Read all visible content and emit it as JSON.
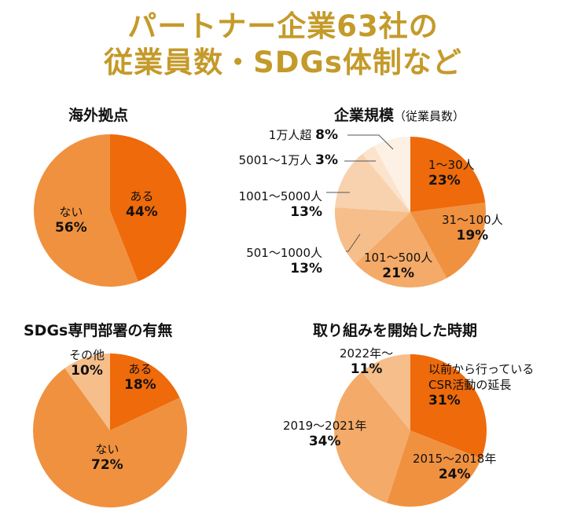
{
  "title": {
    "line1": "パートナー企業63社の",
    "line2": "従業員数・SDGs体制など"
  },
  "colors": [
    "#EE6A0A",
    "#F0913F",
    "#F4AA68",
    "#F6BE8A",
    "#F8D2AE",
    "#FBE3CC",
    "#FDF0E4"
  ],
  "chart_data": [
    {
      "type": "pie",
      "title": "海外拠点",
      "categories": [
        "ある",
        "ない"
      ],
      "values": [
        44,
        56
      ],
      "labels": [
        "44%",
        "56%"
      ],
      "colors": [
        "#EE6A0A",
        "#F0913F"
      ]
    },
    {
      "type": "pie",
      "title": "企業規模",
      "subtitle": "（従業員数）",
      "categories": [
        "1～30人",
        "31～100人",
        "101～500人",
        "501～1000人",
        "1001～5000人",
        "5001～1万人",
        "1万人超"
      ],
      "values": [
        23,
        19,
        21,
        13,
        13,
        3,
        8
      ],
      "labels": [
        "23%",
        "19%",
        "21%",
        "13%",
        "13%",
        "3%",
        "8%"
      ],
      "colors": [
        "#EE6A0A",
        "#F0913F",
        "#F4AA68",
        "#F6BE8A",
        "#F8D2AE",
        "#FBE3CC",
        "#FDF0E4"
      ]
    },
    {
      "type": "pie",
      "title": "SDGs専門部署の有無",
      "categories": [
        "ある",
        "ない",
        "その他"
      ],
      "values": [
        18,
        72,
        10
      ],
      "labels": [
        "18%",
        "72%",
        "10%"
      ],
      "colors": [
        "#EE6A0A",
        "#F0913F",
        "#F6BE8A"
      ]
    },
    {
      "type": "pie",
      "title": "取り組みを開始した時期",
      "categories": [
        "以前から行っているCSR活動の延長",
        "2015～2018年",
        "2019～2021年",
        "2022年～"
      ],
      "values": [
        31,
        24,
        34,
        11
      ],
      "labels": [
        "31%",
        "24%",
        "34%",
        "11%"
      ],
      "colors": [
        "#EE6A0A",
        "#F0913F",
        "#F4AA68",
        "#F6BE8A"
      ]
    }
  ]
}
